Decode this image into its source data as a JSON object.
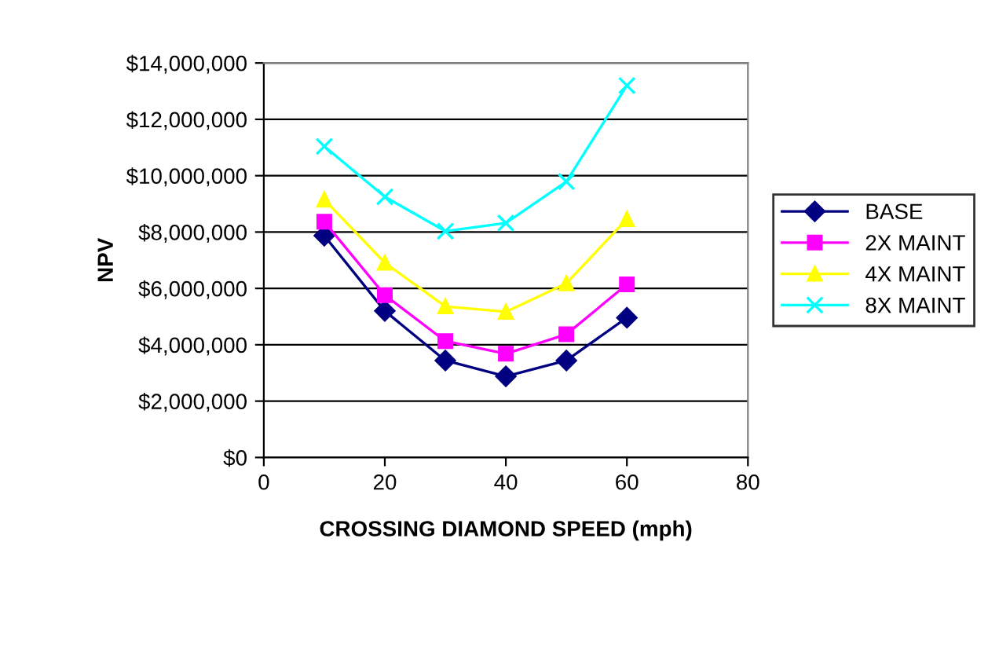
{
  "chart_data": {
    "type": "line",
    "xlabel": "CROSSING DIAMOND SPEED (mph)",
    "ylabel": "NPV",
    "x": [
      10,
      20,
      30,
      40,
      50,
      60
    ],
    "series": [
      {
        "name": "BASE",
        "color": "#000080",
        "marker": "diamond",
        "values": [
          7870000,
          5200000,
          3440000,
          2880000,
          3440000,
          4960000
        ]
      },
      {
        "name": "2X MAINT",
        "color": "#ff00ff",
        "marker": "square",
        "values": [
          8370000,
          5760000,
          4130000,
          3680000,
          4370000,
          6140000
        ]
      },
      {
        "name": "4X MAINT",
        "color": "#ffff00",
        "marker": "triangle",
        "values": [
          9150000,
          6910000,
          5360000,
          5170000,
          6180000,
          8460000
        ]
      },
      {
        "name": "8X MAINT",
        "color": "#00ffff",
        "marker": "cross",
        "values": [
          11040000,
          9250000,
          8030000,
          8320000,
          9790000,
          13200000
        ]
      }
    ],
    "xlim": [
      0,
      80
    ],
    "xticks": [
      0,
      20,
      40,
      60,
      80
    ],
    "ylim": [
      0,
      14000000
    ],
    "yticks": [
      {
        "value": 0,
        "label": "$0"
      },
      {
        "value": 2000000,
        "label": "$2,000,000"
      },
      {
        "value": 4000000,
        "label": "$4,000,000"
      },
      {
        "value": 6000000,
        "label": "$6,000,000"
      },
      {
        "value": 8000000,
        "label": "$8,000,000"
      },
      {
        "value": 10000000,
        "label": "$10,000,000"
      },
      {
        "value": 12000000,
        "label": "$12,000,000"
      },
      {
        "value": 14000000,
        "label": "$14,000,000"
      }
    ],
    "grid": "y",
    "legend": "right"
  }
}
